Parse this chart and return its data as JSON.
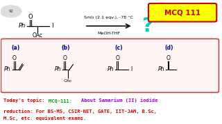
{
  "bg_color": "#ffffff",
  "reagent_line1": "SmI₂ (2.1 eqv.), -78 °C",
  "reagent_line2": "MeOH-THF",
  "mcq_label": "MCQ 111",
  "mcq_label_color": "#cc0000",
  "question_mark": "?",
  "question_mark_color": "#00cccc",
  "options_box_color": "#cc4444",
  "option_labels": [
    "(a)",
    "(b)",
    "(c)",
    "(d)"
  ],
  "option_label_color": "#000099",
  "bottom_text1_color": "#cc0000",
  "bottom_text2_color": "#00aa00",
  "bottom_text3_color": "#9900cc",
  "bottom_text4_color": "#cc0000",
  "bottom_text5_color": "#cc0000",
  "black": "#000000",
  "white": "#ffffff"
}
